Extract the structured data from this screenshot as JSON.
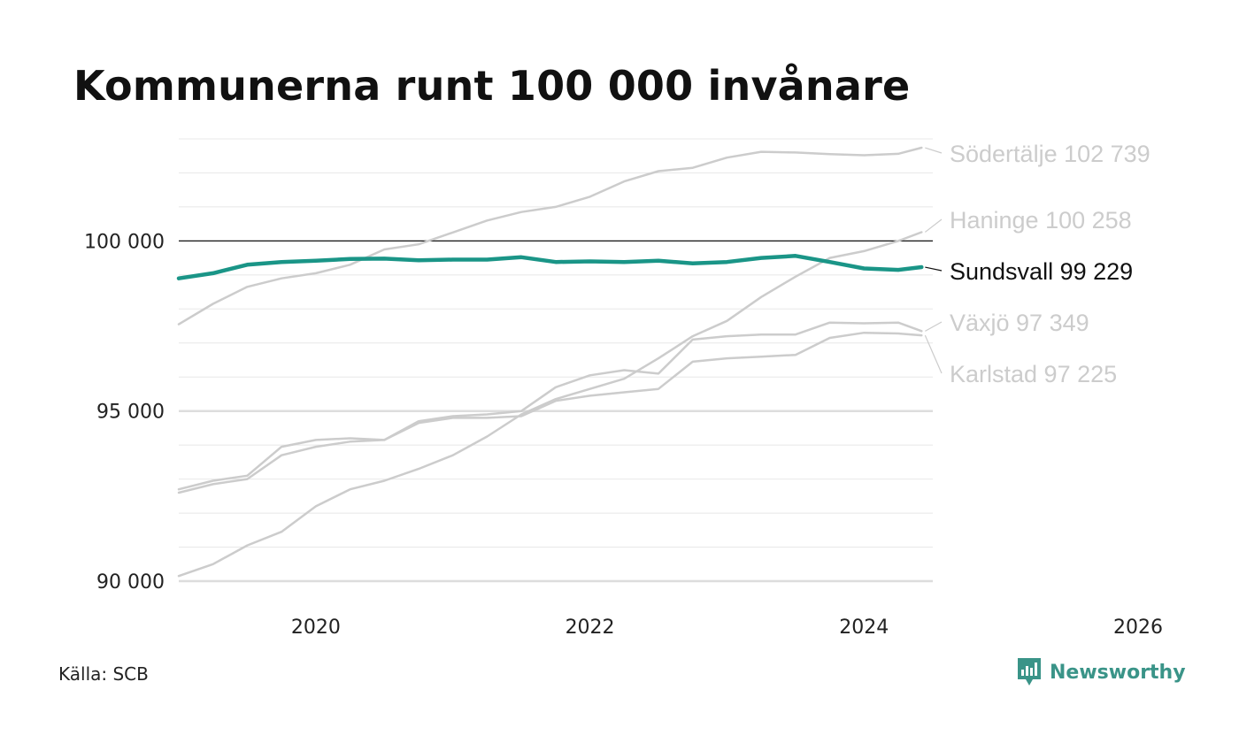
{
  "title": "Kommunerna runt 100 000 invånare",
  "source": "Källa: SCB",
  "brand": {
    "name": "Newsworthy",
    "icon": "newsworthy-logo-icon",
    "color": "#3a9488"
  },
  "chart_data": {
    "type": "line",
    "title": "Kommunerna runt 100 000 invånare",
    "xlabel": "",
    "ylabel": "",
    "xlim": [
      2019.0,
      2026.0
    ],
    "ylim": [
      90000,
      103000
    ],
    "x_ticks": [
      {
        "value": 2020,
        "label": "2020"
      },
      {
        "value": 2022,
        "label": "2022"
      },
      {
        "value": 2024,
        "label": "2024"
      },
      {
        "value": 2026,
        "label": "2026"
      }
    ],
    "y_ticks": [
      {
        "value": 90000,
        "label": "90 000"
      },
      {
        "value": 95000,
        "label": "95 000"
      },
      {
        "value": 100000,
        "label": "100 000"
      }
    ],
    "reference_line": 100000,
    "grid": true,
    "legend": "end-of-line labels",
    "series": [
      {
        "name": "Södertälje",
        "label": "Södertälje 102 739",
        "color": "#cccccc",
        "highlight": false,
        "x": [
          2019.0,
          2019.25,
          2019.5,
          2019.75,
          2020.0,
          2020.25,
          2020.5,
          2020.75,
          2021.0,
          2021.25,
          2021.5,
          2021.75,
          2022.0,
          2022.25,
          2022.5,
          2022.75,
          2023.0,
          2023.25,
          2023.5,
          2023.75,
          2024.0,
          2024.25,
          2024.42
        ],
        "values": [
          97550,
          98150,
          98650,
          98900,
          99050,
          99300,
          99750,
          99900,
          100250,
          100600,
          100850,
          101000,
          101300,
          101750,
          102050,
          102150,
          102450,
          102620,
          102600,
          102550,
          102520,
          102560,
          102739
        ]
      },
      {
        "name": "Haninge",
        "label": "Haninge 100 258",
        "color": "#cccccc",
        "highlight": false,
        "x": [
          2019.0,
          2019.25,
          2019.5,
          2019.75,
          2020.0,
          2020.25,
          2020.5,
          2020.75,
          2021.0,
          2021.25,
          2021.5,
          2021.75,
          2022.0,
          2022.25,
          2022.5,
          2022.75,
          2023.0,
          2023.25,
          2023.5,
          2023.75,
          2024.0,
          2024.25,
          2024.42
        ],
        "values": [
          90150,
          90500,
          91050,
          91450,
          92200,
          92700,
          92950,
          93300,
          93700,
          94250,
          94900,
          95350,
          95650,
          95950,
          96550,
          97200,
          97650,
          98350,
          98950,
          99500,
          99700,
          100000,
          100258
        ]
      },
      {
        "name": "Sundsvall",
        "label": "Sundsvall  99 229",
        "color": "#1a9587",
        "highlight": true,
        "x": [
          2019.0,
          2019.25,
          2019.5,
          2019.75,
          2020.0,
          2020.25,
          2020.5,
          2020.75,
          2021.0,
          2021.25,
          2021.5,
          2021.75,
          2022.0,
          2022.25,
          2022.5,
          2022.75,
          2023.0,
          2023.25,
          2023.5,
          2023.75,
          2024.0,
          2024.25,
          2024.42
        ],
        "values": [
          98900,
          99050,
          99300,
          99380,
          99420,
          99470,
          99480,
          99430,
          99450,
          99450,
          99520,
          99380,
          99400,
          99380,
          99420,
          99340,
          99380,
          99500,
          99560,
          99380,
          99190,
          99150,
          99229
        ]
      },
      {
        "name": "Växjö",
        "label": "Växjö  97 349",
        "color": "#cccccc",
        "highlight": false,
        "x": [
          2019.0,
          2019.25,
          2019.5,
          2019.75,
          2020.0,
          2020.25,
          2020.5,
          2020.75,
          2021.0,
          2021.25,
          2021.5,
          2021.75,
          2022.0,
          2022.25,
          2022.5,
          2022.75,
          2023.0,
          2023.25,
          2023.5,
          2023.75,
          2024.0,
          2024.25,
          2024.42
        ],
        "values": [
          92700,
          92950,
          93100,
          93950,
          94150,
          94200,
          94150,
          94700,
          94850,
          94900,
          95000,
          95700,
          96050,
          96200,
          96100,
          97100,
          97200,
          97250,
          97250,
          97600,
          97580,
          97600,
          97349
        ]
      },
      {
        "name": "Karlstad",
        "label": "Karlstad  97 225",
        "color": "#cccccc",
        "highlight": false,
        "x": [
          2019.0,
          2019.25,
          2019.5,
          2019.75,
          2020.0,
          2020.25,
          2020.5,
          2020.75,
          2021.0,
          2021.25,
          2021.5,
          2021.75,
          2022.0,
          2022.25,
          2022.5,
          2022.75,
          2023.0,
          2023.25,
          2023.5,
          2023.75,
          2024.0,
          2024.25,
          2024.42
        ],
        "values": [
          92600,
          92850,
          93000,
          93700,
          93950,
          94100,
          94150,
          94650,
          94800,
          94800,
          94850,
          95300,
          95450,
          95550,
          95650,
          96450,
          96550,
          96600,
          96650,
          97150,
          97300,
          97280,
          97225
        ]
      }
    ]
  }
}
